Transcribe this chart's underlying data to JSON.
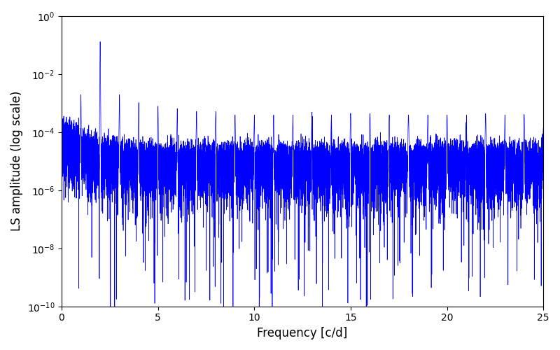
{
  "title": "",
  "xlabel": "Frequency [c/d]",
  "ylabel": "LS amplitude (log scale)",
  "line_color": "#0000ff",
  "linewidth": 0.5,
  "xlim": [
    0,
    25
  ],
  "ylim": [
    1e-10,
    1
  ],
  "ylim_display": [
    3e-10,
    0.3
  ],
  "yscale": "log",
  "figsize": [
    8.0,
    5.0
  ],
  "dpi": 100,
  "background_color": "#ffffff",
  "freq_min": 0.0,
  "freq_max": 25.0,
  "n_points": 15000,
  "seed": 42
}
